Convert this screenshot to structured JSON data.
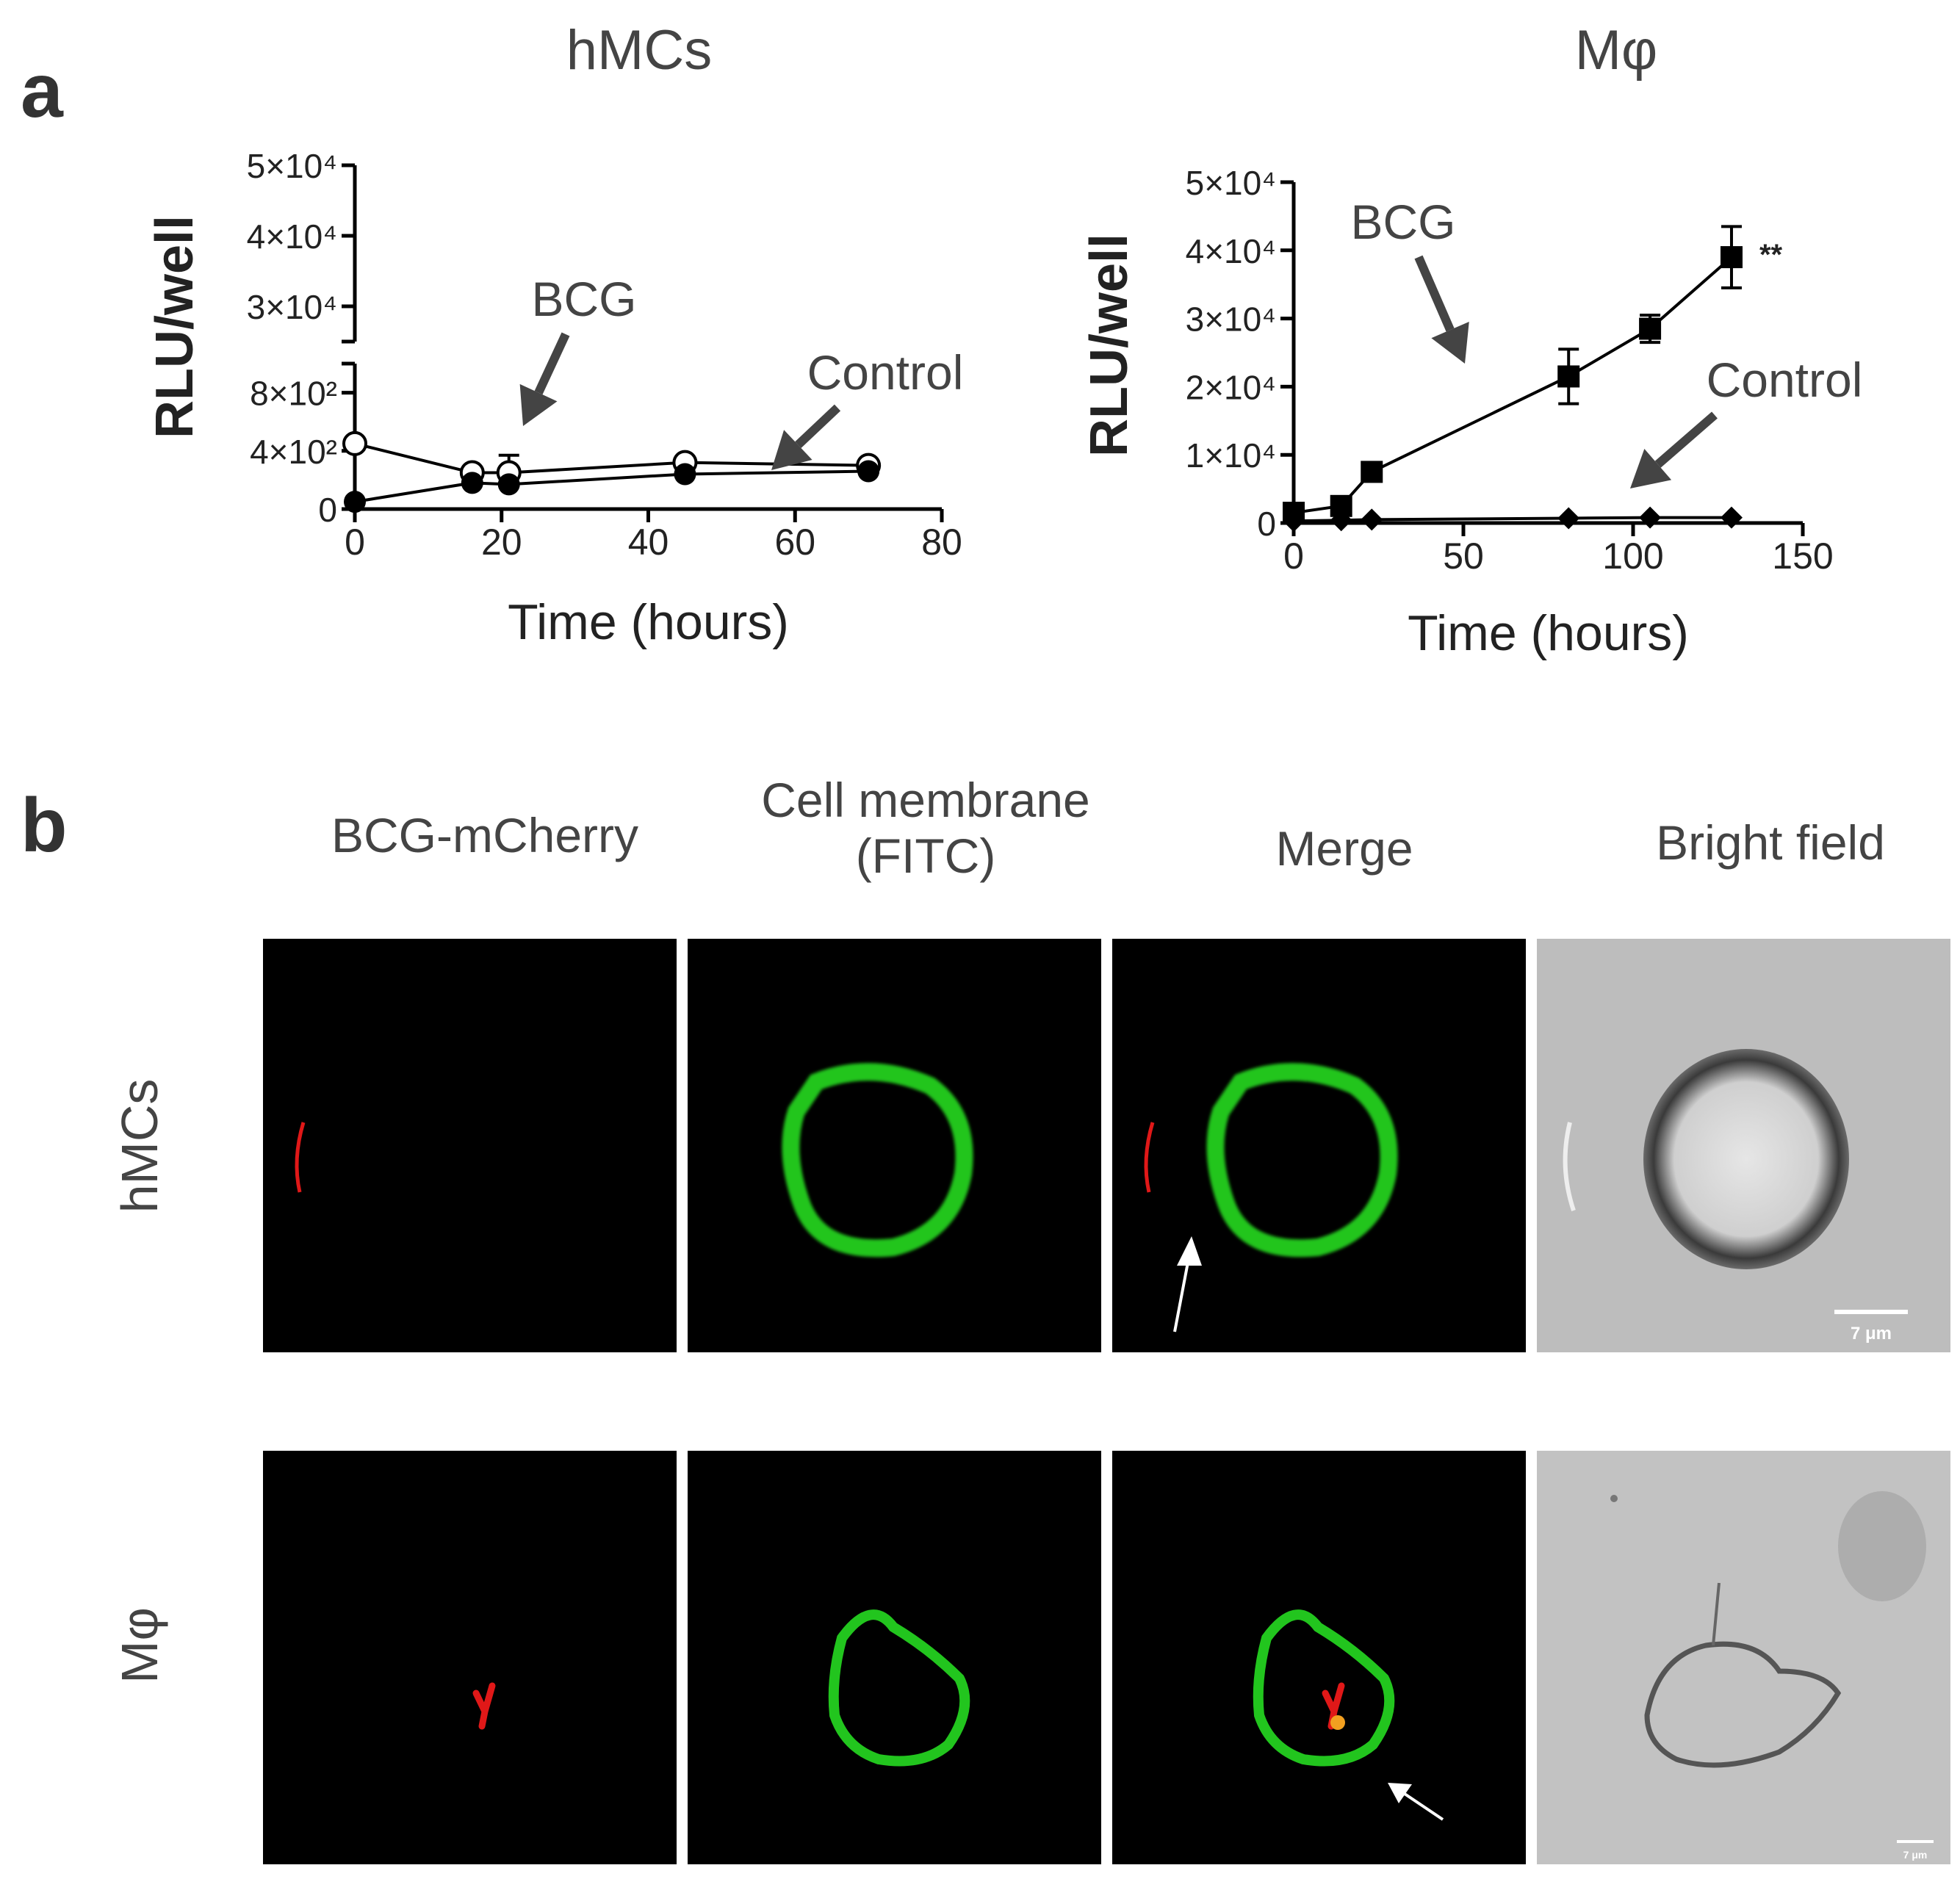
{
  "panel_a": {
    "letter": "a"
  },
  "panel_b": {
    "letter": "b"
  },
  "chart_data": [
    {
      "type": "line",
      "title": "hMCs",
      "xlabel": "Time (hours)",
      "ylabel": "RLU/well",
      "xlim": [
        0,
        80
      ],
      "x_ticks": [
        "0",
        "20",
        "40",
        "60",
        "80"
      ],
      "y_axis_broken": true,
      "y_lower_ticks": [
        "0",
        "4×10²",
        "8×10²"
      ],
      "y_upper_ticks": [
        "3×10⁴",
        "4×10⁴",
        "5×10⁴"
      ],
      "series": [
        {
          "marker": "open-circle",
          "x": [
            0,
            16,
            21,
            45,
            70
          ],
          "y": [
            450,
            250,
            250,
            320,
            300
          ],
          "err": [
            0,
            0,
            120,
            0,
            0
          ]
        },
        {
          "marker": "filled-circle",
          "x": [
            0,
            16,
            21,
            45,
            70
          ],
          "y": [
            50,
            180,
            170,
            240,
            260
          ]
        }
      ],
      "annotations": [
        {
          "text": "BCG",
          "arrow": true
        },
        {
          "text": "Control",
          "arrow": true
        }
      ]
    },
    {
      "type": "line",
      "title": "Mφ",
      "xlabel": "Time (hours)",
      "ylabel": "RLU/well",
      "xlim": [
        0,
        150
      ],
      "ylim": [
        0,
        50000
      ],
      "x_ticks": [
        "0",
        "50",
        "100",
        "150"
      ],
      "y_ticks": [
        "0",
        "1×10⁴",
        "2×10⁴",
        "3×10⁴",
        "4×10⁴",
        "5×10⁴"
      ],
      "series": [
        {
          "marker": "filled-square",
          "x": [
            0,
            14,
            23,
            81,
            105,
            129
          ],
          "y": [
            1500,
            2500,
            7500,
            21500,
            28500,
            39000
          ],
          "err": [
            0,
            0,
            0,
            4000,
            2000,
            4500
          ]
        },
        {
          "marker": "filled-diamond",
          "x": [
            0,
            14,
            23,
            81,
            105,
            129
          ],
          "y": [
            300,
            400,
            500,
            700,
            800,
            800
          ]
        }
      ],
      "annotations": [
        {
          "text": "BCG",
          "arrow": true
        },
        {
          "text": "Control",
          "arrow": true
        },
        {
          "text": "**",
          "arrow": false
        }
      ]
    }
  ],
  "microscopy": {
    "columns": [
      "BCG-mCherry",
      "Cell membrane\n(FITC)",
      "Merge",
      "Bright field"
    ],
    "rows": [
      "hMCs",
      "Mφ"
    ],
    "scale_bar_label": "7 μm"
  }
}
